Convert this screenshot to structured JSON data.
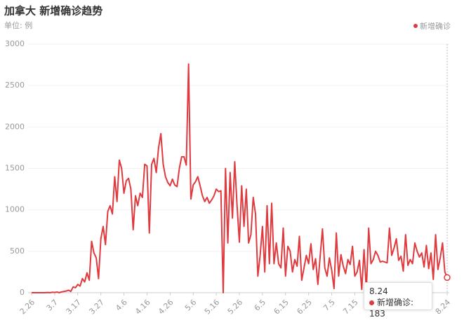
{
  "chart_data": {
    "type": "line",
    "title": "加拿大 新增确诊趋势",
    "subtitle": "单位: 例",
    "categories": [
      "2.26",
      null,
      null,
      null,
      null,
      null,
      null,
      null,
      null,
      null,
      "3.7",
      null,
      null,
      null,
      null,
      null,
      null,
      null,
      null,
      null,
      "3.17",
      null,
      null,
      null,
      null,
      null,
      null,
      null,
      null,
      null,
      "3.27",
      null,
      null,
      null,
      null,
      null,
      null,
      null,
      null,
      null,
      "4.6",
      null,
      null,
      null,
      null,
      null,
      null,
      null,
      null,
      null,
      "4.16",
      null,
      null,
      null,
      null,
      null,
      null,
      null,
      null,
      null,
      "4.26",
      null,
      null,
      null,
      null,
      null,
      null,
      null,
      null,
      null,
      "5.6",
      null,
      null,
      null,
      null,
      null,
      null,
      null,
      null,
      null,
      "5.16",
      null,
      null,
      null,
      null,
      null,
      null,
      null,
      null,
      null,
      "5.26",
      null,
      null,
      null,
      null,
      null,
      null,
      null,
      null,
      null,
      "6.5",
      null,
      null,
      null,
      null,
      null,
      null,
      null,
      null,
      null,
      "6.15",
      null,
      null,
      null,
      null,
      null,
      null,
      null,
      null,
      null,
      "6.25",
      null,
      null,
      null,
      null,
      null,
      null,
      null,
      null,
      null,
      "7.5",
      null,
      null,
      null,
      null,
      null,
      null,
      null,
      null,
      null,
      "7.15",
      null,
      null,
      null,
      null,
      null,
      null,
      null,
      null,
      null,
      null,
      null,
      null,
      null,
      null,
      null,
      null,
      null,
      null,
      null,
      null,
      null,
      null,
      null,
      null,
      null,
      null,
      null,
      null,
      null,
      null,
      null,
      null,
      null,
      null,
      null,
      null,
      null,
      null,
      null,
      "8.24"
    ],
    "series": [
      {
        "name": "新增确诊",
        "color": "#e0393e",
        "values": [
          0,
          0,
          0,
          0,
          0,
          0,
          0,
          2,
          0,
          5,
          3,
          8,
          0,
          10,
          15,
          20,
          30,
          15,
          70,
          60,
          100,
          80,
          170,
          130,
          240,
          150,
          620,
          480,
          420,
          170,
          650,
          800,
          580,
          980,
          1050,
          950,
          1400,
          1100,
          1600,
          1500,
          1200,
          1350,
          1380,
          1250,
          760,
          1170,
          1050,
          1200,
          1150,
          1550,
          1530,
          720,
          1550,
          1620,
          1450,
          1750,
          1920,
          1550,
          1400,
          1330,
          1290,
          1370,
          1300,
          1280,
          1500,
          1640,
          1640,
          1540,
          2760,
          1130,
          1300,
          1340,
          1400,
          1290,
          1170,
          1100,
          1150,
          1080,
          1120,
          1170,
          1250,
          1220,
          1230,
          0,
          1500,
          600,
          1450,
          900,
          1580,
          1050,
          610,
          1290,
          800,
          1250,
          600,
          700,
          1150,
          950,
          200,
          450,
          800,
          250,
          1050,
          350,
          1080,
          350,
          600,
          350,
          300,
          780,
          200,
          560,
          500,
          250,
          400,
          320,
          680,
          150,
          300,
          450,
          350,
          590,
          280,
          410,
          100,
          440,
          770,
          300,
          200,
          420,
          270,
          50,
          720,
          200,
          460,
          320,
          230,
          400,
          340,
          560,
          200,
          250,
          390,
          40,
          520,
          30,
          780,
          350,
          400,
          500,
          450,
          370,
          380,
          370,
          360,
          780,
          450,
          540,
          650,
          390,
          440,
          260,
          700,
          330,
          400,
          350,
          600,
          500,
          430,
          480,
          310,
          570,
          290,
          480,
          160,
          700,
          280,
          420,
          600,
          250,
          183
        ]
      }
    ],
    "ylim": [
      0,
      3000
    ],
    "yticks": [
      0,
      500,
      1000,
      1500,
      2000,
      2500,
      3000
    ],
    "grid": true,
    "legend": "top-right"
  }
}
